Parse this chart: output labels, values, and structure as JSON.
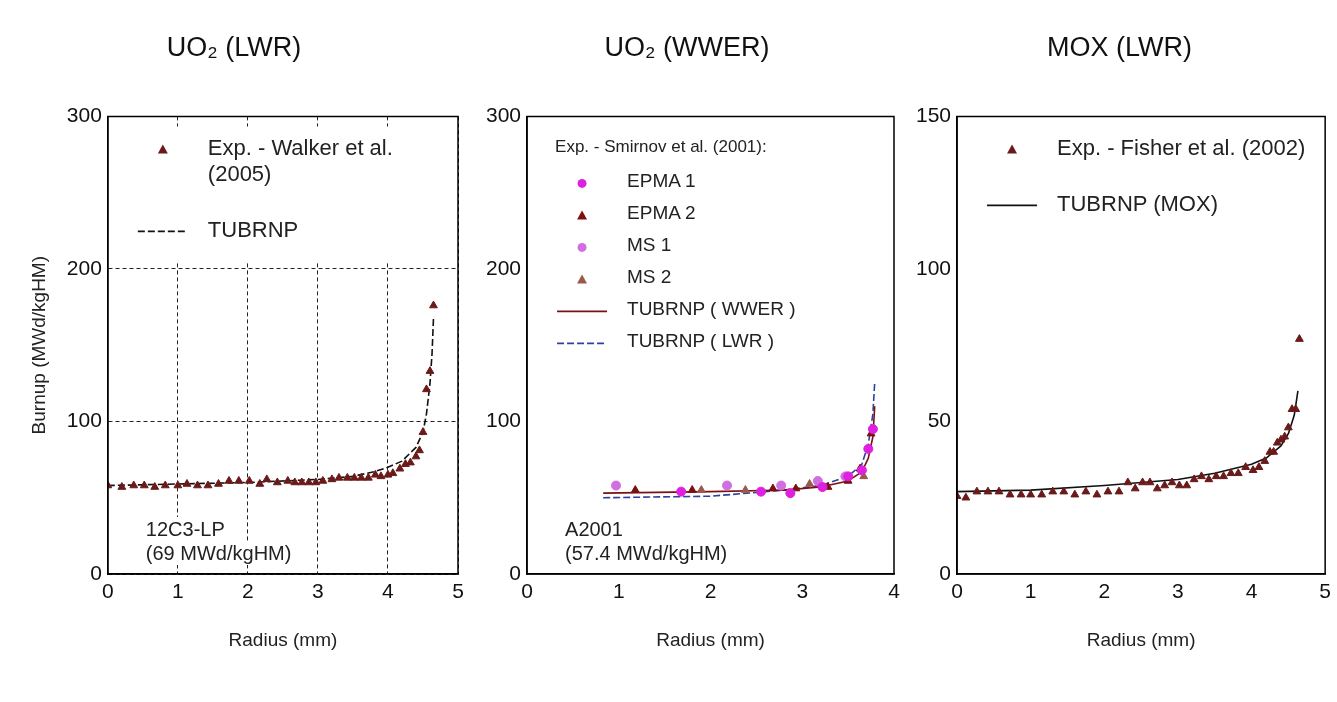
{
  "chart_data": [
    {
      "type": "scatter",
      "title": "UO₂ (LWR)",
      "xlabel": "Radius (mm)",
      "ylabel": "Burnup (MWd/kgHM)",
      "xlim": [
        0,
        5
      ],
      "xticks": [
        0,
        1,
        2,
        3,
        4,
        5
      ],
      "ylim": [
        0,
        300
      ],
      "yticks": [
        0,
        100,
        200,
        300
      ],
      "grid": true,
      "legend": "top",
      "annotations": [
        "12C3-LP",
        "(69 MWd/kgHM)"
      ],
      "series": [
        {
          "name": "Exp. - Walker et al. (2005)",
          "type": "scatter",
          "marker": "triangle",
          "color": "#6b1a1a",
          "x": [
            0,
            0.2,
            0.37,
            0.52,
            0.67,
            0.82,
            1.0,
            1.13,
            1.28,
            1.43,
            1.58,
            1.73,
            1.87,
            2.02,
            2.17,
            2.27,
            2.42,
            2.57,
            2.67,
            2.77,
            2.87,
            2.97,
            3.07,
            3.2,
            3.3,
            3.42,
            3.52,
            3.62,
            3.72,
            3.82,
            3.9,
            4.0,
            4.07,
            4.17,
            4.25,
            4.32,
            4.4,
            4.45,
            4.5,
            4.55,
            4.6,
            4.65
          ],
          "values": [
            58,
            57,
            58,
            58,
            57,
            58,
            58,
            59,
            58,
            58,
            59,
            61,
            61,
            61,
            59,
            62,
            60,
            61,
            60,
            60,
            60,
            60,
            61,
            62,
            63,
            63,
            63,
            63,
            63,
            65,
            64,
            65,
            66,
            69,
            72,
            73,
            77,
            81,
            93,
            121,
            133,
            176
          ]
        },
        {
          "name": "TUBRNP",
          "type": "line",
          "line_style": "dashed",
          "color": "#111111",
          "x": [
            0,
            1,
            2,
            3,
            3.5,
            3.8,
            4,
            4.2,
            4.4,
            4.5,
            4.55,
            4.6,
            4.63,
            4.65
          ],
          "values": [
            58,
            59,
            60,
            62,
            64,
            67,
            70,
            74,
            83,
            93,
            105,
            125,
            145,
            168
          ]
        }
      ]
    },
    {
      "type": "scatter",
      "title": "UO₂ (WWER)",
      "xlabel": "Radius (mm)",
      "xlim": [
        0,
        4
      ],
      "xticks": [
        0,
        1,
        2,
        3,
        4
      ],
      "ylim": [
        0,
        300
      ],
      "yticks": [
        0,
        100,
        200,
        300
      ],
      "legend": "top",
      "legend_title": "Exp. - Smirnov et al. (2001):",
      "annotations": [
        "A2001",
        "(57.4 MWd/kgHM)"
      ],
      "series": [
        {
          "name": "EPMA 1",
          "type": "scatter",
          "marker": "circle",
          "color": "#e020e0",
          "x": [
            1.68,
            2.55,
            2.87,
            3.22,
            3.5,
            3.65,
            3.72,
            3.77
          ],
          "values": [
            54,
            54,
            53,
            57,
            64,
            68,
            82,
            95
          ]
        },
        {
          "name": "EPMA 2",
          "type": "scatter",
          "marker": "triangle",
          "color": "#7a1010",
          "x": [
            1.18,
            1.8,
            2.68,
            2.93,
            3.28,
            3.5,
            3.63,
            3.75
          ],
          "values": [
            55,
            55,
            56,
            56,
            57,
            61,
            69,
            92
          ]
        },
        {
          "name": "MS 1",
          "type": "scatter",
          "marker": "circle",
          "color": "#d070e0",
          "x": [
            0.97,
            2.18,
            2.77,
            3.17,
            3.47
          ],
          "values": [
            58,
            58,
            58,
            61,
            64
          ]
        },
        {
          "name": "MS 2",
          "type": "scatter",
          "marker": "triangle",
          "color": "#9a5a4a",
          "x": [
            1.9,
            2.38,
            3.08,
            3.67
          ],
          "values": [
            55,
            55,
            59,
            64
          ]
        },
        {
          "name": "TUBRNP ( WWER )",
          "type": "line",
          "line_style": "solid",
          "color": "#7a1010",
          "x": [
            0.83,
            2,
            2.8,
            3.2,
            3.5,
            3.65,
            3.72,
            3.77,
            3.79
          ],
          "values": [
            53,
            54,
            55,
            57,
            61,
            67,
            76,
            90,
            110
          ]
        },
        {
          "name": "TUBRNP ( LWR )",
          "type": "line",
          "line_style": "dashed",
          "color": "#3040a0",
          "x": [
            0.83,
            2,
            2.8,
            3.2,
            3.5,
            3.65,
            3.72,
            3.77,
            3.79
          ],
          "values": [
            50,
            51,
            55,
            58,
            64,
            72,
            85,
            105,
            126
          ]
        }
      ]
    },
    {
      "type": "scatter",
      "title": "MOX (LWR)",
      "xlabel": "Radius (mm)",
      "xlim": [
        0,
        5
      ],
      "xticks": [
        0,
        1,
        2,
        3,
        4,
        5
      ],
      "ylim": [
        0,
        150
      ],
      "yticks": [
        0,
        50,
        100,
        150
      ],
      "legend": "top",
      "series": [
        {
          "name": "Exp. - Fisher et al. (2002)",
          "type": "scatter",
          "marker": "triangle",
          "color": "#6b1a1a",
          "x": [
            0,
            0.12,
            0.27,
            0.42,
            0.57,
            0.72,
            0.87,
            1.0,
            1.15,
            1.3,
            1.45,
            1.6,
            1.75,
            1.9,
            2.05,
            2.2,
            2.32,
            2.42,
            2.52,
            2.62,
            2.72,
            2.82,
            2.92,
            3.02,
            3.12,
            3.22,
            3.32,
            3.42,
            3.52,
            3.62,
            3.72,
            3.82,
            3.92,
            4.02,
            4.1,
            4.18,
            4.25,
            4.3,
            4.35,
            4.4,
            4.45,
            4.5,
            4.55,
            4.6,
            4.65
          ],
          "values": [
            25.5,
            25,
            27,
            27,
            27,
            26,
            26,
            26,
            26,
            27,
            27,
            26,
            27,
            26,
            27,
            27,
            30,
            28,
            30,
            30,
            28,
            29,
            30,
            29,
            29,
            31,
            32,
            31,
            32,
            32,
            33,
            33,
            35,
            34,
            35,
            37,
            40,
            40,
            43,
            44,
            45,
            48,
            54,
            54,
            77
          ]
        },
        {
          "name": "TUBRNP (MOX)",
          "type": "line",
          "line_style": "solid",
          "color": "#111111",
          "x": [
            0,
            1,
            2,
            3,
            3.5,
            4,
            4.2,
            4.4,
            4.5,
            4.58,
            4.63
          ],
          "values": [
            27,
            27.5,
            29,
            31,
            33,
            36,
            38,
            42,
            46,
            52,
            60
          ]
        }
      ]
    }
  ]
}
